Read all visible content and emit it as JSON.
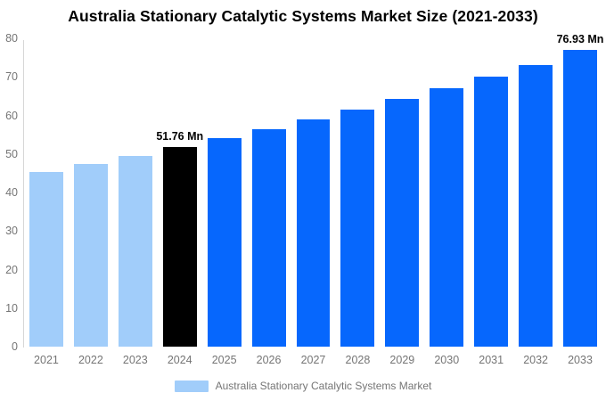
{
  "chart_data": {
    "type": "bar",
    "title": "Australia Stationary Catalytic Systems Market Size (2021-2033)",
    "categories": [
      "2021",
      "2022",
      "2023",
      "2024",
      "2025",
      "2026",
      "2027",
      "2028",
      "2029",
      "2030",
      "2031",
      "2032",
      "2033"
    ],
    "values": [
      45.36,
      47.39,
      49.52,
      51.76,
      54.04,
      56.42,
      58.9,
      61.49,
      64.21,
      67.04,
      70.0,
      73.08,
      76.93
    ],
    "point_labels": [
      "",
      "",
      "",
      "51.76 Mn",
      "",
      "",
      "",
      "",
      "",
      "",
      "",
      "",
      "76.93 Mn"
    ],
    "bar_colors": [
      "#a1cdfa",
      "#a1cdfa",
      "#a1cdfa",
      "#000000",
      "#0667fd",
      "#0667fd",
      "#0667fd",
      "#0667fd",
      "#0667fd",
      "#0667fd",
      "#0667fd",
      "#0667fd",
      "#0667fd"
    ],
    "xlabel": "",
    "ylabel": "",
    "ylim": [
      0,
      80
    ],
    "yticks": [
      0,
      10,
      20,
      30,
      40,
      50,
      60,
      70,
      80
    ],
    "grid": "off",
    "legend_position": "bottom-center",
    "legend": {
      "label": "Australia Stationary Catalytic Systems Market",
      "swatch_color": "#a1cdfa"
    },
    "colors": {
      "historical_bar": "#a1cdfa",
      "current_year_bar": "#000000",
      "forecast_bar": "#0667fd",
      "axis_line": "#d6d6d6",
      "tick_text": "#757575",
      "title_text": "#000000"
    }
  }
}
